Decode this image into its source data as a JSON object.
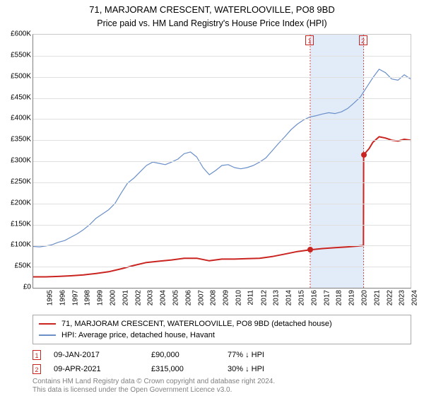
{
  "title": "71, MARJORAM CRESCENT, WATERLOOVILLE, PO8 9BD",
  "subtitle": "Price paid vs. HM Land Registry's House Price Index (HPI)",
  "chart": {
    "type": "line",
    "x_start_year": 1995,
    "x_end_year": 2025,
    "x_step": 1,
    "y_min": 0,
    "y_max": 600000,
    "y_step": 50000,
    "y_prefix": "£",
    "y_suffix_k": "K",
    "grid_color": "#e0e0e0",
    "axis_color": "#808080",
    "plot_border_color": "#c8c8c8",
    "background": "#ffffff",
    "title_fontsize": 13,
    "subtitle_fontsize": 12.5,
    "tick_fontsize": 10,
    "shaded_region": {
      "start_year": 2017.02,
      "end_year": 2021.27,
      "color": "#e2ecf8"
    },
    "markers": [
      {
        "label": "1",
        "year": 2017.02,
        "color": "#ca2420"
      },
      {
        "label": "2",
        "year": 2021.27,
        "color": "#ca2420"
      }
    ],
    "series_red": {
      "label": "71, MARJORAM CRESCENT, WATERLOOVILLE, PO8 9BD (detached house)",
      "color": "#ca2420",
      "line_width": 2,
      "points": [
        [
          1995.0,
          26000
        ],
        [
          1996.0,
          26000
        ],
        [
          1997.0,
          27000
        ],
        [
          1998.0,
          28500
        ],
        [
          1999.0,
          30500
        ],
        [
          2000.0,
          34000
        ],
        [
          2001.0,
          38000
        ],
        [
          2002.0,
          45000
        ],
        [
          2003.0,
          53000
        ],
        [
          2004.0,
          60000
        ],
        [
          2005.0,
          63000
        ],
        [
          2006.0,
          66000
        ],
        [
          2007.0,
          70000
        ],
        [
          2008.0,
          70000
        ],
        [
          2009.0,
          64000
        ],
        [
          2010.0,
          68000
        ],
        [
          2011.0,
          68000
        ],
        [
          2012.0,
          69000
        ],
        [
          2013.0,
          70000
        ],
        [
          2014.0,
          74000
        ],
        [
          2015.0,
          80000
        ],
        [
          2016.0,
          86000
        ],
        [
          2017.02,
          90000
        ],
        [
          2018.0,
          93000
        ],
        [
          2019.0,
          95000
        ],
        [
          2020.0,
          97000
        ],
        [
          2021.25,
          100000
        ],
        [
          2021.27,
          315000
        ],
        [
          2021.7,
          330000
        ],
        [
          2022.0,
          345000
        ],
        [
          2022.5,
          358000
        ],
        [
          2023.0,
          355000
        ],
        [
          2023.5,
          350000
        ],
        [
          2024.0,
          348000
        ],
        [
          2024.5,
          352000
        ],
        [
          2025.0,
          350000
        ]
      ]
    },
    "series_blue": {
      "label": "HPI: Average price, detached house, Havant",
      "color": "#6a8fc9",
      "line_width": 1.2,
      "points": [
        [
          1995.0,
          98000
        ],
        [
          1995.5,
          97000
        ],
        [
          1996.0,
          99000
        ],
        [
          1996.5,
          102000
        ],
        [
          1997.0,
          108000
        ],
        [
          1997.5,
          112000
        ],
        [
          1998.0,
          120000
        ],
        [
          1998.5,
          128000
        ],
        [
          1999.0,
          138000
        ],
        [
          1999.5,
          150000
        ],
        [
          2000.0,
          165000
        ],
        [
          2000.5,
          175000
        ],
        [
          2001.0,
          185000
        ],
        [
          2001.5,
          200000
        ],
        [
          2002.0,
          225000
        ],
        [
          2002.5,
          248000
        ],
        [
          2003.0,
          260000
        ],
        [
          2003.5,
          275000
        ],
        [
          2004.0,
          290000
        ],
        [
          2004.5,
          298000
        ],
        [
          2005.0,
          295000
        ],
        [
          2005.5,
          292000
        ],
        [
          2006.0,
          298000
        ],
        [
          2006.5,
          305000
        ],
        [
          2007.0,
          318000
        ],
        [
          2007.5,
          322000
        ],
        [
          2008.0,
          310000
        ],
        [
          2008.5,
          285000
        ],
        [
          2009.0,
          268000
        ],
        [
          2009.5,
          278000
        ],
        [
          2010.0,
          290000
        ],
        [
          2010.5,
          292000
        ],
        [
          2011.0,
          285000
        ],
        [
          2011.5,
          282000
        ],
        [
          2012.0,
          285000
        ],
        [
          2012.5,
          290000
        ],
        [
          2013.0,
          298000
        ],
        [
          2013.5,
          308000
        ],
        [
          2014.0,
          325000
        ],
        [
          2014.5,
          342000
        ],
        [
          2015.0,
          358000
        ],
        [
          2015.5,
          375000
        ],
        [
          2016.0,
          388000
        ],
        [
          2016.5,
          398000
        ],
        [
          2017.0,
          405000
        ],
        [
          2017.5,
          408000
        ],
        [
          2018.0,
          412000
        ],
        [
          2018.5,
          415000
        ],
        [
          2019.0,
          413000
        ],
        [
          2019.5,
          417000
        ],
        [
          2020.0,
          425000
        ],
        [
          2020.5,
          438000
        ],
        [
          2021.0,
          452000
        ],
        [
          2021.5,
          475000
        ],
        [
          2022.0,
          498000
        ],
        [
          2022.5,
          518000
        ],
        [
          2023.0,
          510000
        ],
        [
          2023.5,
          495000
        ],
        [
          2024.0,
          492000
        ],
        [
          2024.5,
          505000
        ],
        [
          2025.0,
          495000
        ]
      ]
    },
    "sale_dots": [
      {
        "year": 2017.02,
        "price": 90000,
        "color": "#ca2420"
      },
      {
        "year": 2021.27,
        "price": 315000,
        "color": "#ca2420"
      }
    ]
  },
  "legend": {
    "border_color": "#a8a8a8",
    "fontsize": 11
  },
  "sales": [
    {
      "num": "1",
      "date": "09-JAN-2017",
      "price": "£90,000",
      "diff": "77% ↓ HPI",
      "border_color": "#ca2420"
    },
    {
      "num": "2",
      "date": "09-APR-2021",
      "price": "£315,000",
      "diff": "30% ↓ HPI",
      "border_color": "#ca2420"
    }
  ],
  "copyright": [
    "Contains HM Land Registry data © Crown copyright and database right 2024.",
    "This data is licensed under the Open Government Licence v3.0."
  ]
}
